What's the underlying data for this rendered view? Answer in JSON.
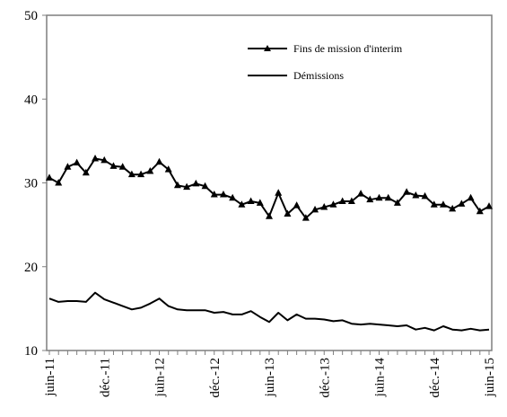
{
  "chart_data": {
    "type": "line",
    "title": "",
    "xlabel": "",
    "ylabel": "",
    "ylim": [
      10,
      50
    ],
    "yticks": [
      10,
      20,
      30,
      40,
      50
    ],
    "grid": false,
    "legend": "top-right",
    "x_tick_labels": [
      "juin-11",
      "déc.-11",
      "juin-12",
      "déc.-12",
      "juin-13",
      "déc.-13",
      "juin-14",
      "déc.-14",
      "juin-15"
    ],
    "x": [
      "2011-06",
      "2011-07",
      "2011-08",
      "2011-09",
      "2011-10",
      "2011-11",
      "2011-12",
      "2012-01",
      "2012-02",
      "2012-03",
      "2012-04",
      "2012-05",
      "2012-06",
      "2012-07",
      "2012-08",
      "2012-09",
      "2012-10",
      "2012-11",
      "2012-12",
      "2013-01",
      "2013-02",
      "2013-03",
      "2013-04",
      "2013-05",
      "2013-06",
      "2013-07",
      "2013-08",
      "2013-09",
      "2013-10",
      "2013-11",
      "2013-12",
      "2014-01",
      "2014-02",
      "2014-03",
      "2014-04",
      "2014-05",
      "2014-06",
      "2014-07",
      "2014-08",
      "2014-09",
      "2014-10",
      "2014-11",
      "2014-12",
      "2015-01",
      "2015-02",
      "2015-03",
      "2015-04",
      "2015-05",
      "2015-06"
    ],
    "series": [
      {
        "name": "Fins de mission d'interim",
        "marker": "triangle",
        "color": "#000000",
        "values": [
          30.6,
          30.0,
          31.9,
          32.4,
          31.2,
          32.9,
          32.7,
          32.0,
          31.9,
          31.0,
          31.0,
          31.4,
          32.5,
          31.6,
          29.7,
          29.5,
          29.9,
          29.6,
          28.6,
          28.6,
          28.2,
          27.4,
          27.8,
          27.6,
          26.0,
          28.8,
          26.3,
          27.3,
          25.8,
          26.8,
          27.1,
          27.4,
          27.8,
          27.8,
          28.7,
          28.0,
          28.2,
          28.2,
          27.6,
          28.9,
          28.5,
          28.4,
          27.4,
          27.4,
          26.9,
          27.5,
          28.2,
          26.6,
          27.2
        ]
      },
      {
        "name": "Démissions",
        "marker": "none",
        "color": "#000000",
        "values": [
          16.2,
          15.8,
          15.9,
          15.9,
          15.8,
          16.9,
          16.1,
          15.7,
          15.3,
          14.9,
          15.1,
          15.6,
          16.2,
          15.3,
          14.9,
          14.8,
          14.8,
          14.8,
          14.5,
          14.6,
          14.3,
          14.3,
          14.7,
          14.0,
          13.4,
          14.5,
          13.6,
          14.3,
          13.8,
          13.8,
          13.7,
          13.5,
          13.6,
          13.2,
          13.1,
          13.2,
          13.1,
          13.0,
          12.9,
          13.0,
          12.5,
          12.7,
          12.4,
          12.9,
          12.5,
          12.4,
          12.6,
          12.4,
          12.5
        ]
      }
    ]
  }
}
